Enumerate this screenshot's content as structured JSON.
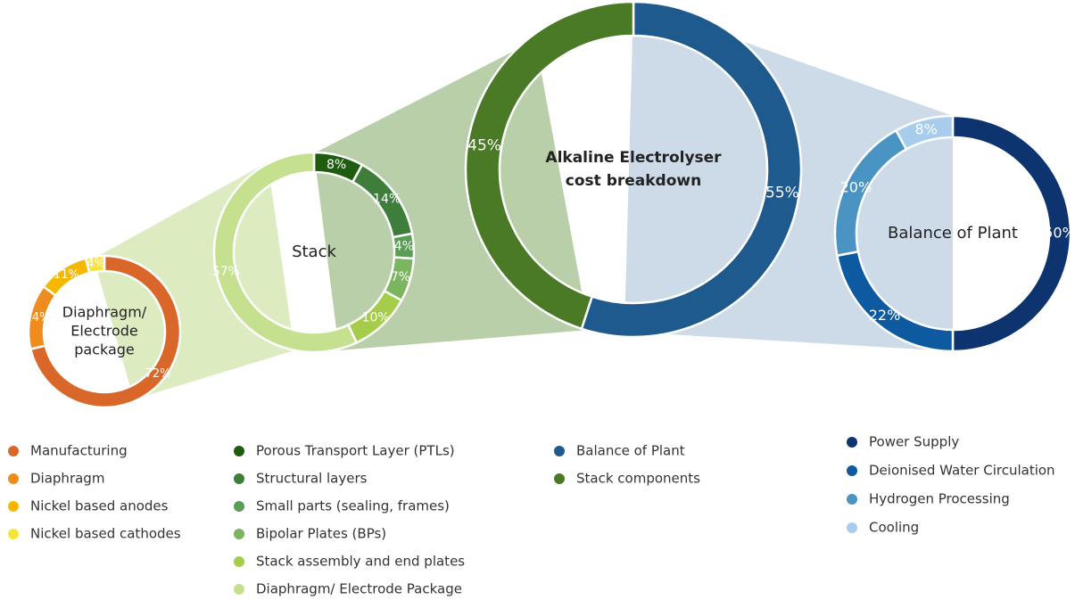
{
  "chart_data": [
    {
      "type": "donut",
      "title": [
        "Diaphragm/",
        "Electrode",
        "package"
      ],
      "categories": [
        "Manufacturing",
        "Diaphragm",
        "Nickel based anodes",
        "Nickel based cathodes"
      ],
      "values": [
        72,
        14,
        11,
        4
      ],
      "value_labels": [
        "72%",
        "14%",
        "11%",
        "4%"
      ],
      "colors": [
        "#d9672a",
        "#f08c1e",
        "#f5b800",
        "#f7e43a"
      ]
    },
    {
      "type": "donut",
      "title": [
        "Stack"
      ],
      "categories": [
        "Porous Transport Layer (PTLs)",
        "Structural layers",
        "Small parts (sealing, frames)",
        "Bipolar Plates (BPs)",
        "Stack assembly and end plates",
        "Diaphragm/ Electrode Package"
      ],
      "values": [
        8,
        14,
        4,
        7,
        10,
        57
      ],
      "value_labels": [
        "8%",
        "14%",
        "4%",
        "7%",
        "10%",
        "57%"
      ],
      "colors": [
        "#1e5c0f",
        "#3e7e3a",
        "#5a9e55",
        "#7cb55f",
        "#a5cd4a",
        "#c5e08e"
      ]
    },
    {
      "type": "donut",
      "title": [
        "Alkaline Electrolyser",
        "cost breakdown"
      ],
      "categories": [
        "Balance of Plant",
        "Stack components"
      ],
      "values": [
        55,
        45
      ],
      "value_labels": [
        "55%",
        "45%"
      ],
      "colors": [
        "#1f5a8e",
        "#4a7a25"
      ]
    },
    {
      "type": "donut",
      "title": [
        "Balance of Plant"
      ],
      "categories": [
        "Power Supply",
        "Deionised Water Circulation",
        "Hydrogen Processing",
        "Cooling"
      ],
      "values": [
        50,
        22,
        20,
        8
      ],
      "value_labels": [
        "50%",
        "22%",
        "20%",
        "8%"
      ],
      "colors": [
        "#0e3470",
        "#0d5aa0",
        "#4a94c4",
        "#a8ccec"
      ]
    }
  ]
}
